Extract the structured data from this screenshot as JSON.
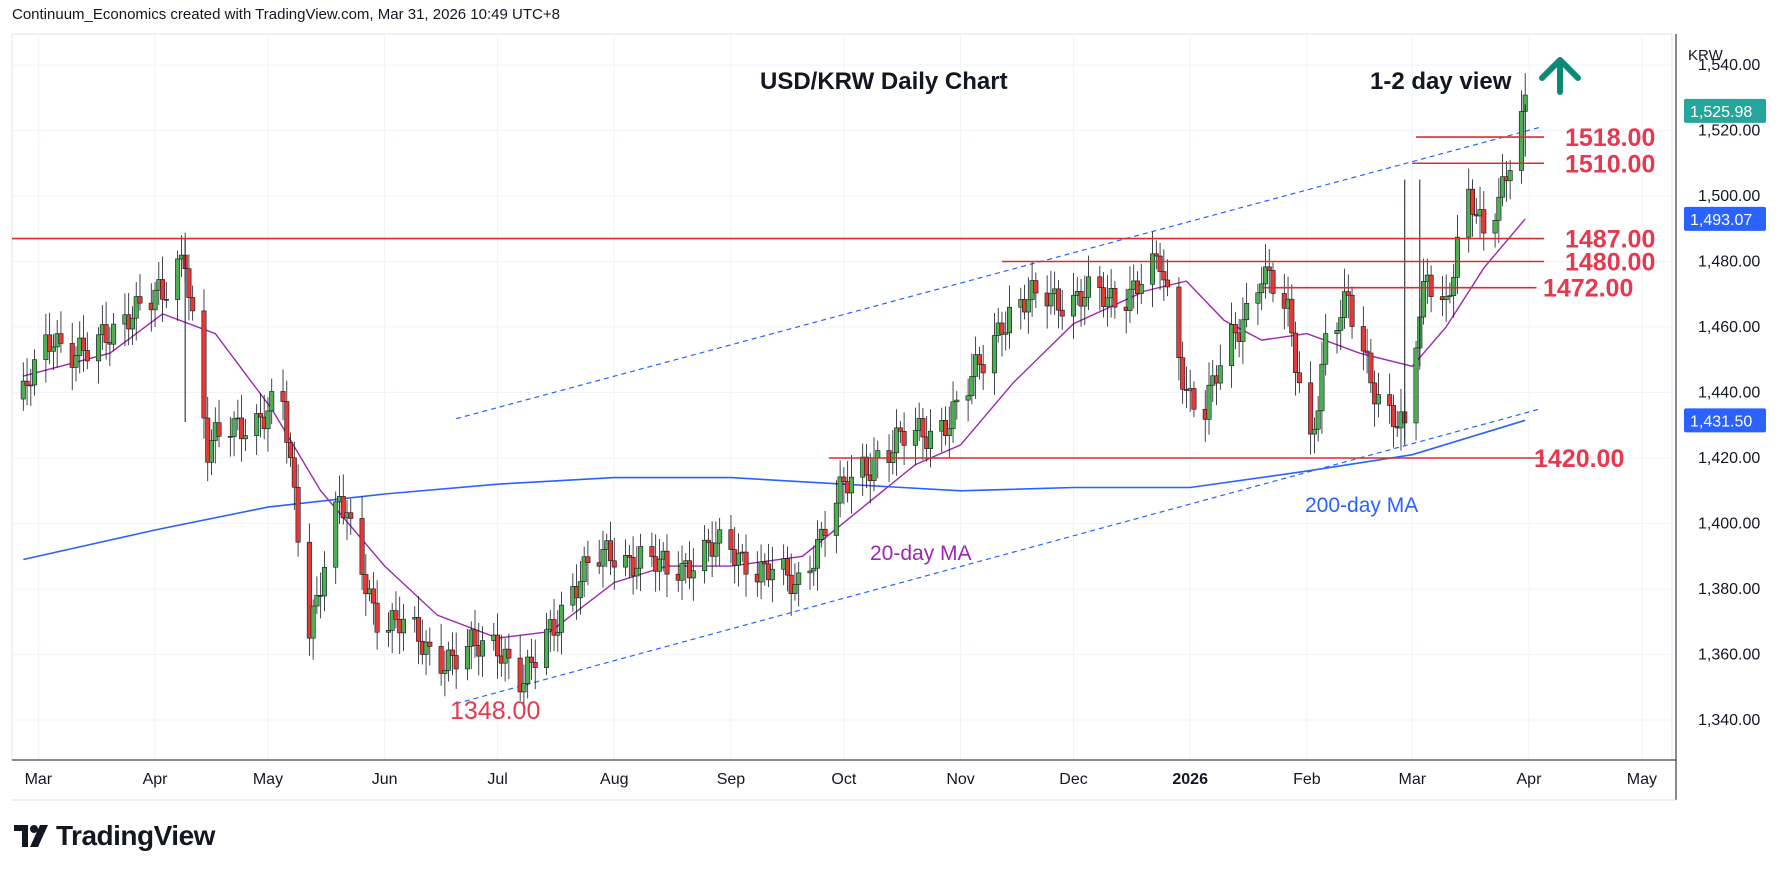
{
  "header": {
    "attribution": "Continuum_Economics created with TradingView.com, Mar 31, 2026 10:49 UTC+8"
  },
  "brand": {
    "name": "TradingView"
  },
  "chart_data": {
    "type": "candlestick",
    "title": "USD/KRW Daily Chart",
    "view_label": "1-2 day view",
    "view_direction": "up",
    "currency_label": "KRW",
    "y_ticks": [
      "1,540.00",
      "1,520.00",
      "1,500.00",
      "1,480.00",
      "1,460.00",
      "1,440.00",
      "1,420.00",
      "1,400.00",
      "1,380.00",
      "1,360.00",
      "1,340.00"
    ],
    "y_tick_values": [
      1540,
      1520,
      1500,
      1480,
      1460,
      1440,
      1420,
      1400,
      1380,
      1360,
      1340
    ],
    "ylim": [
      1327,
      1570
    ],
    "x_ticks": [
      "Mar",
      "Apr",
      "May",
      "Jun",
      "Jul",
      "Aug",
      "Sep",
      "Oct",
      "Nov",
      "Dec",
      "2026",
      "Feb",
      "Mar",
      "Apr",
      "May"
    ],
    "price_tags": [
      {
        "label": "1,525.98",
        "value": 1526,
        "color": "#26a69a"
      },
      {
        "label": "1,493.07",
        "value": 1493,
        "color": "#2962ff"
      },
      {
        "label": "1,431.50",
        "value": 1431.5,
        "color": "#2962ff"
      }
    ],
    "levels": [
      {
        "label": "1518.00",
        "value": 1518,
        "from": "2026-03-02",
        "to": "2026-04-05"
      },
      {
        "label": "1510.00",
        "value": 1510,
        "from": "2026-03-01",
        "to": "2026-04-05"
      },
      {
        "label": "1487.00",
        "value": 1487,
        "from": "2025-02-20",
        "to": "2026-04-05"
      },
      {
        "label": "1480.00",
        "value": 1480,
        "from": "2025-11-12",
        "to": "2026-04-05"
      },
      {
        "label": "1472.00",
        "value": 1472,
        "from": "2026-01-20",
        "to": "2026-04-03"
      },
      {
        "label": "1420.00",
        "value": 1420,
        "from": "2025-09-27",
        "to": "2026-04-05"
      }
    ],
    "low_annotation": {
      "label": "1348.00",
      "value": 1348
    },
    "ma20_label": "20-day MA",
    "ma200_label": "200-day MA",
    "channel": {
      "upper": [
        {
          "date": "2025-06-20",
          "value": 1432
        },
        {
          "date": "2026-04-04",
          "value": 1521
        }
      ],
      "lower": [
        {
          "date": "2025-06-20",
          "value": 1345
        },
        {
          "date": "2026-04-04",
          "value": 1435
        }
      ]
    },
    "ma20": [
      {
        "date": "2025-02-25",
        "value": 1445
      },
      {
        "date": "2025-03-20",
        "value": 1452
      },
      {
        "date": "2025-04-03",
        "value": 1464
      },
      {
        "date": "2025-04-17",
        "value": 1458
      },
      {
        "date": "2025-05-02",
        "value": 1435
      },
      {
        "date": "2025-05-15",
        "value": 1410
      },
      {
        "date": "2025-06-01",
        "value": 1387
      },
      {
        "date": "2025-06-15",
        "value": 1372
      },
      {
        "date": "2025-07-01",
        "value": 1365
      },
      {
        "date": "2025-07-15",
        "value": 1367
      },
      {
        "date": "2025-08-01",
        "value": 1382
      },
      {
        "date": "2025-08-15",
        "value": 1387
      },
      {
        "date": "2025-09-01",
        "value": 1387
      },
      {
        "date": "2025-09-20",
        "value": 1390
      },
      {
        "date": "2025-10-05",
        "value": 1404
      },
      {
        "date": "2025-10-20",
        "value": 1418
      },
      {
        "date": "2025-11-01",
        "value": 1424
      },
      {
        "date": "2025-11-15",
        "value": 1443
      },
      {
        "date": "2025-12-01",
        "value": 1461
      },
      {
        "date": "2025-12-20",
        "value": 1471
      },
      {
        "date": "2025-12-31",
        "value": 1474
      },
      {
        "date": "2026-01-10",
        "value": 1462
      },
      {
        "date": "2026-01-20",
        "value": 1456
      },
      {
        "date": "2026-02-01",
        "value": 1458
      },
      {
        "date": "2026-02-15",
        "value": 1452
      },
      {
        "date": "2026-03-01",
        "value": 1448
      },
      {
        "date": "2026-03-10",
        "value": 1460
      },
      {
        "date": "2026-03-20",
        "value": 1478
      },
      {
        "date": "2026-03-31",
        "value": 1493
      }
    ],
    "ma200": [
      {
        "date": "2025-02-25",
        "value": 1389
      },
      {
        "date": "2025-04-01",
        "value": 1398
      },
      {
        "date": "2025-05-01",
        "value": 1405
      },
      {
        "date": "2025-06-01",
        "value": 1409
      },
      {
        "date": "2025-07-01",
        "value": 1412
      },
      {
        "date": "2025-08-01",
        "value": 1414
      },
      {
        "date": "2025-09-01",
        "value": 1414
      },
      {
        "date": "2025-10-01",
        "value": 1412
      },
      {
        "date": "2025-11-01",
        "value": 1410
      },
      {
        "date": "2025-12-01",
        "value": 1411
      },
      {
        "date": "2026-01-01",
        "value": 1411
      },
      {
        "date": "2026-02-01",
        "value": 1416
      },
      {
        "date": "2026-03-01",
        "value": 1421
      },
      {
        "date": "2026-03-31",
        "value": 1431.5
      }
    ],
    "close_path": [
      {
        "date": "2025-02-25",
        "value": 1438
      },
      {
        "date": "2025-03-05",
        "value": 1458
      },
      {
        "date": "2025-03-15",
        "value": 1450
      },
      {
        "date": "2025-03-25",
        "value": 1466
      },
      {
        "date": "2025-04-03",
        "value": 1468
      },
      {
        "date": "2025-04-09",
        "value": 1484
      },
      {
        "date": "2025-04-15",
        "value": 1422
      },
      {
        "date": "2025-04-25",
        "value": 1432
      },
      {
        "date": "2025-05-05",
        "value": 1435
      },
      {
        "date": "2025-05-12",
        "value": 1370
      },
      {
        "date": "2025-05-20",
        "value": 1406
      },
      {
        "date": "2025-05-30",
        "value": 1373
      },
      {
        "date": "2025-06-10",
        "value": 1364
      },
      {
        "date": "2025-06-20",
        "value": 1358
      },
      {
        "date": "2025-07-01",
        "value": 1365
      },
      {
        "date": "2025-07-08",
        "value": 1350
      },
      {
        "date": "2025-07-20",
        "value": 1380
      },
      {
        "date": "2025-08-01",
        "value": 1392
      },
      {
        "date": "2025-08-15",
        "value": 1385
      },
      {
        "date": "2025-08-25",
        "value": 1392
      },
      {
        "date": "2025-09-05",
        "value": 1390
      },
      {
        "date": "2025-09-18",
        "value": 1380
      },
      {
        "date": "2025-09-28",
        "value": 1405
      },
      {
        "date": "2025-10-10",
        "value": 1422
      },
      {
        "date": "2025-10-20",
        "value": 1426
      },
      {
        "date": "2025-11-01",
        "value": 1435
      },
      {
        "date": "2025-11-12",
        "value": 1463
      },
      {
        "date": "2025-11-25",
        "value": 1470
      },
      {
        "date": "2025-12-10",
        "value": 1468
      },
      {
        "date": "2025-12-24",
        "value": 1478
      },
      {
        "date": "2025-12-31",
        "value": 1442
      },
      {
        "date": "2026-01-05",
        "value": 1435
      },
      {
        "date": "2026-01-20",
        "value": 1478
      },
      {
        "date": "2026-01-27",
        "value": 1462
      },
      {
        "date": "2026-02-02",
        "value": 1426
      },
      {
        "date": "2026-02-06",
        "value": 1455
      },
      {
        "date": "2026-02-12",
        "value": 1466
      },
      {
        "date": "2026-02-20",
        "value": 1440
      },
      {
        "date": "2026-02-27",
        "value": 1426
      },
      {
        "date": "2026-03-02",
        "value": 1455
      },
      {
        "date": "2026-03-05",
        "value": 1478
      },
      {
        "date": "2026-03-10",
        "value": 1468
      },
      {
        "date": "2026-03-16",
        "value": 1497
      },
      {
        "date": "2026-03-20",
        "value": 1489
      },
      {
        "date": "2026-03-25",
        "value": 1505
      },
      {
        "date": "2026-03-31",
        "value": 1526
      }
    ],
    "key_spikes": [
      {
        "date": "2025-04-09",
        "high": 1487,
        "low": 1431
      },
      {
        "date": "2026-02-27",
        "high": 1505,
        "low": 1424
      },
      {
        "date": "2026-03-03",
        "high": 1505,
        "low": 1448
      },
      {
        "date": "2026-03-31",
        "high": 1528,
        "low": 1512
      }
    ]
  }
}
